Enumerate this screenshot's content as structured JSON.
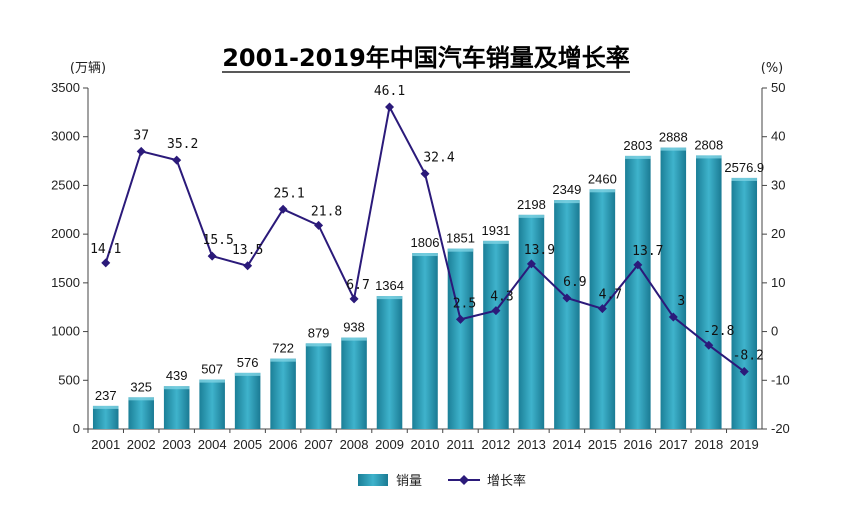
{
  "chart_data": {
    "type": "bar",
    "title": "2001-2019年中国汽车销量及增长率",
    "y_left_unit": "(万辆)",
    "y_right_unit": "(%)",
    "ylim_left": [
      0,
      3500
    ],
    "ylim_right": [
      -20,
      50
    ],
    "yticks_left": [
      "0",
      "500",
      "1000",
      "1500",
      "2000",
      "2500",
      "3000",
      "3500"
    ],
    "yticks_right": [
      "-20",
      "-10",
      "0",
      "10",
      "20",
      "30",
      "40",
      "50"
    ],
    "categories": [
      "2001",
      "2002",
      "2003",
      "2004",
      "2005",
      "2006",
      "2007",
      "2008",
      "2009",
      "2010",
      "2011",
      "2012",
      "2013",
      "2014",
      "2015",
      "2016",
      "2017",
      "2018",
      "2019"
    ],
    "series": [
      {
        "name": "销量",
        "type": "bar",
        "axis": "left",
        "values": [
          237,
          325,
          439,
          507,
          576,
          722,
          879,
          938,
          1364,
          1806,
          1851,
          1931,
          2198,
          2349,
          2460,
          2803,
          2888,
          2808,
          2576.9
        ],
        "labels": [
          "237",
          "325",
          "439",
          "507",
          "576",
          "722",
          "879",
          "938",
          "1364",
          "1806",
          "1851",
          "1931",
          "2198",
          "2349",
          "2460",
          "2803",
          "2888",
          "2808",
          "2576.9"
        ],
        "color": "#2a9fb8"
      },
      {
        "name": "增长率",
        "type": "line",
        "axis": "right",
        "values": [
          14.1,
          37,
          35.2,
          15.5,
          13.5,
          25.1,
          21.8,
          6.7,
          46.1,
          32.4,
          2.5,
          4.3,
          13.9,
          6.9,
          4.7,
          13.7,
          3,
          -2.8,
          -8.2
        ],
        "labels": [
          "14.1",
          "37",
          "35.2",
          "15.5",
          "13.5",
          "25.1",
          "21.8",
          "6.7",
          "46.1",
          "32.4",
          "2.5",
          "4.3",
          "13.9",
          "6.9",
          "4.7",
          "13.7",
          "3",
          "-2.8",
          "-8.2"
        ],
        "color": "#2b1a7a"
      }
    ],
    "legend": {
      "position": "bottom-center",
      "items": [
        "销量",
        "增长率"
      ]
    },
    "grid": false
  }
}
